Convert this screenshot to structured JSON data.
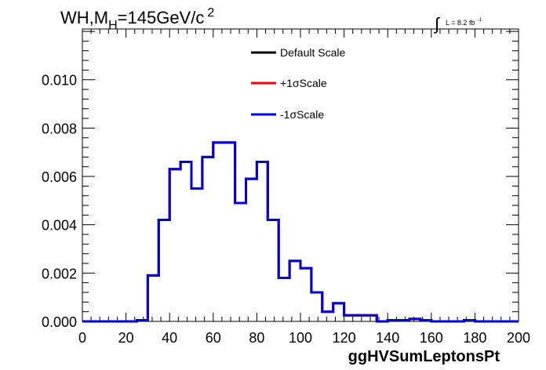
{
  "chart_data": {
    "type": "line",
    "title_main": "WH,M",
    "title_sub": "H",
    "title_tail": "=145GeV/c",
    "title_sup": "2",
    "lumi_integral": "∫",
    "lumi_label": "L = 8.2 fb",
    "lumi_sup": "-1",
    "xlabel": "ggHVSumLeptonsPt",
    "ylabel": "",
    "xlim": [
      0,
      200
    ],
    "ylim": [
      0,
      0.0121
    ],
    "x_ticks": [
      "0",
      "20",
      "40",
      "60",
      "80",
      "100",
      "120",
      "140",
      "160",
      "180",
      "200"
    ],
    "x_tick_values": [
      0,
      20,
      40,
      60,
      80,
      100,
      120,
      140,
      160,
      180,
      200
    ],
    "y_ticks": [
      "0.000",
      "0.002",
      "0.004",
      "0.006",
      "0.008",
      "0.010"
    ],
    "y_tick_values": [
      0,
      0.002,
      0.004,
      0.006,
      0.008,
      0.01
    ],
    "legend_position": "top-center",
    "bin_width": 5,
    "bin_edges_start": 0,
    "series": [
      {
        "name": "Default Scale",
        "color": "#000000",
        "values": [
          0,
          0,
          0,
          0,
          0,
          5e-05,
          0.0019,
          0.0042,
          0.0063,
          0.0066,
          0.0055,
          0.0068,
          0.0074,
          0.0074,
          0.0049,
          0.0059,
          0.0066,
          0.0042,
          0.0018,
          0.0025,
          0.0022,
          0.0012,
          0.0004,
          0.00075,
          0.00025,
          0.00025,
          0.00025,
          0,
          5e-05,
          5e-05,
          0.0001,
          5e-05,
          0,
          0,
          0,
          5e-05,
          0,
          0,
          0,
          0
        ]
      },
      {
        "name": "+1σScale",
        "color": "#ff0000",
        "values": [
          0,
          0,
          0,
          0,
          0,
          5e-05,
          0.0019,
          0.0042,
          0.0063,
          0.0066,
          0.0055,
          0.0068,
          0.0074,
          0.0074,
          0.0049,
          0.0059,
          0.0066,
          0.0042,
          0.0018,
          0.0025,
          0.0022,
          0.0012,
          0.0004,
          0.00075,
          0.00025,
          0.00025,
          0.00025,
          0,
          5e-05,
          5e-05,
          0.0001,
          5e-05,
          0,
          0,
          0,
          5e-05,
          0,
          0,
          0,
          0
        ]
      },
      {
        "name": "-1σScale",
        "color": "#0000dd",
        "values": [
          0,
          0,
          0,
          0,
          0,
          5e-05,
          0.0019,
          0.0042,
          0.0063,
          0.0066,
          0.0055,
          0.0068,
          0.0074,
          0.0074,
          0.0049,
          0.0059,
          0.0066,
          0.0042,
          0.0018,
          0.0025,
          0.0022,
          0.0012,
          0.0004,
          0.00075,
          0.00025,
          0.00025,
          0.00025,
          0,
          5e-05,
          5e-05,
          0.0001,
          5e-05,
          0,
          0,
          0,
          5e-05,
          0,
          0,
          0,
          0
        ]
      }
    ]
  }
}
